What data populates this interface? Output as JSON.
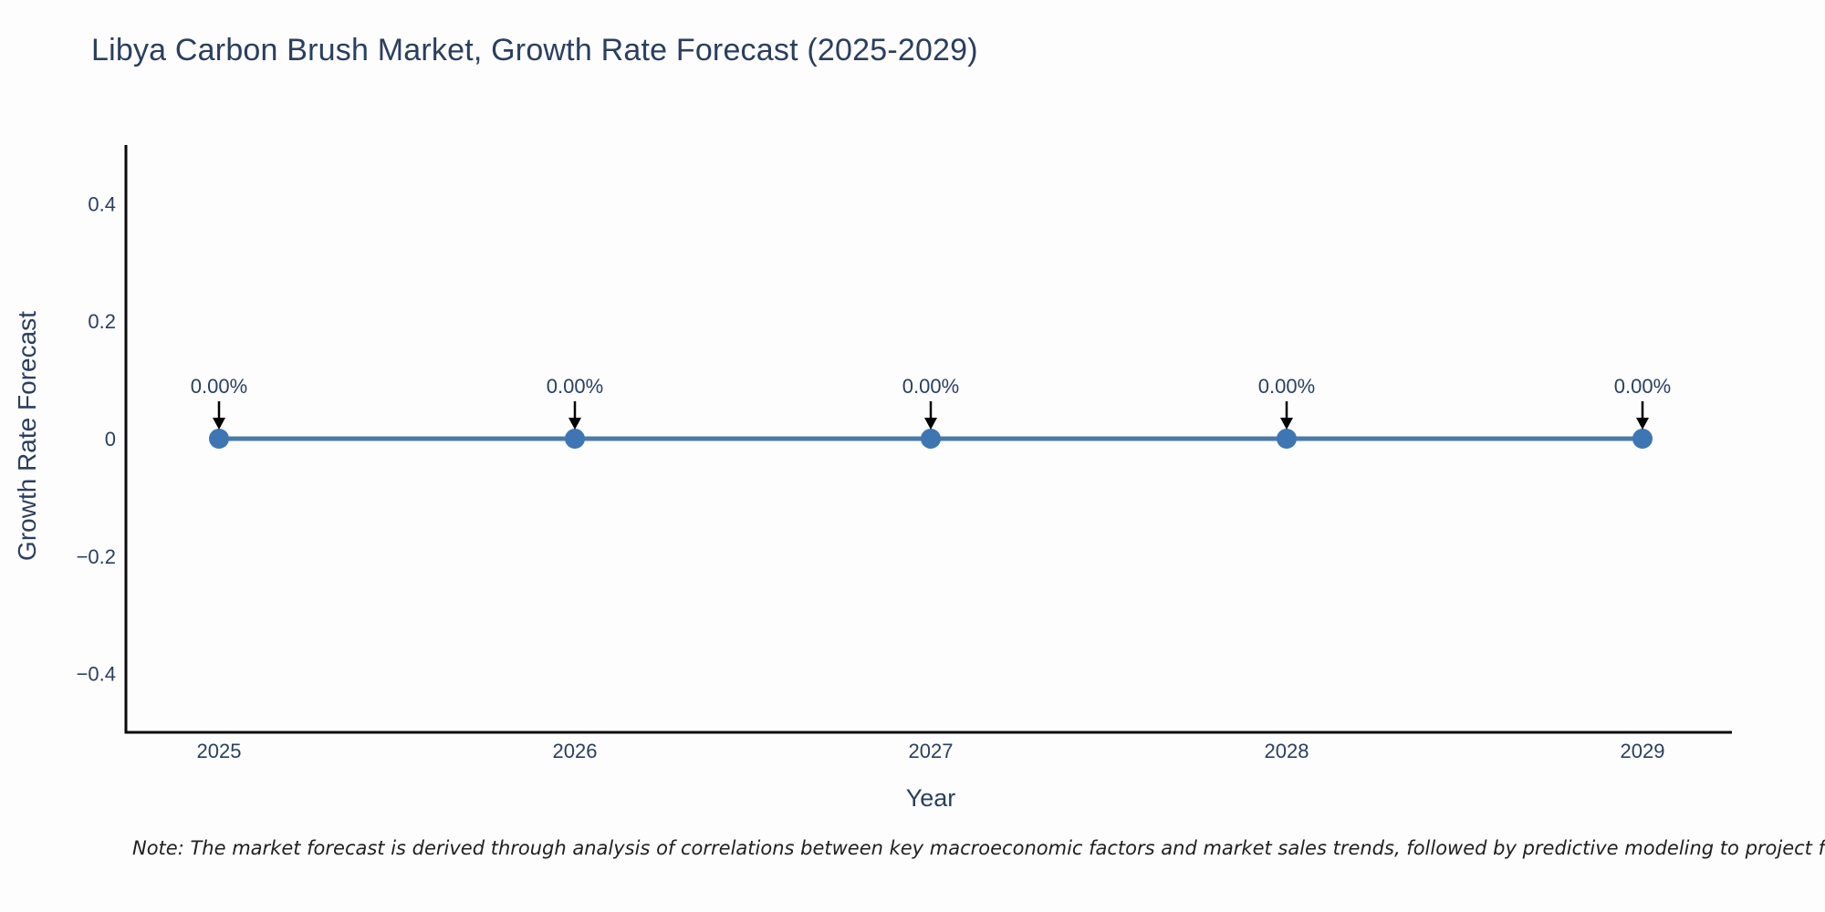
{
  "page": {
    "note": "Note: The market forecast is derived through analysis of correlations between key macroeconomic factors and market sales trends, followed by predictive modeling to project future sales."
  },
  "chart_data": {
    "type": "line",
    "title": "Libya Carbon Brush Market, Growth Rate Forecast (2025-2029)",
    "xlabel": "Year",
    "ylabel": "Growth Rate Forecast",
    "categories": [
      "2025",
      "2026",
      "2027",
      "2028",
      "2029"
    ],
    "series": [
      {
        "name": "Growth Rate Forecast",
        "values": [
          0,
          0,
          0,
          0,
          0
        ],
        "point_labels": [
          "0.00%",
          "0.00%",
          "0.00%",
          "0.00%",
          "0.00%"
        ]
      }
    ],
    "ylim": [
      -0.5,
      0.5
    ],
    "yticks": [
      0.4,
      0.2,
      0,
      -0.2,
      -0.4
    ],
    "ytick_labels": [
      "0.4",
      "0.2",
      "0",
      "−0.2",
      "−0.4"
    ],
    "grid": false,
    "legend": "none",
    "annotation_style": "value-label-with-down-arrow",
    "colors": {
      "line": "#4b7aa9",
      "marker": "#3e76b4",
      "axis": "#0a0a0a",
      "text": "#2a3f5f",
      "annotation_arrow": "#000000",
      "note_text": "#1f1f1f",
      "background": "#fdfdfd"
    }
  }
}
